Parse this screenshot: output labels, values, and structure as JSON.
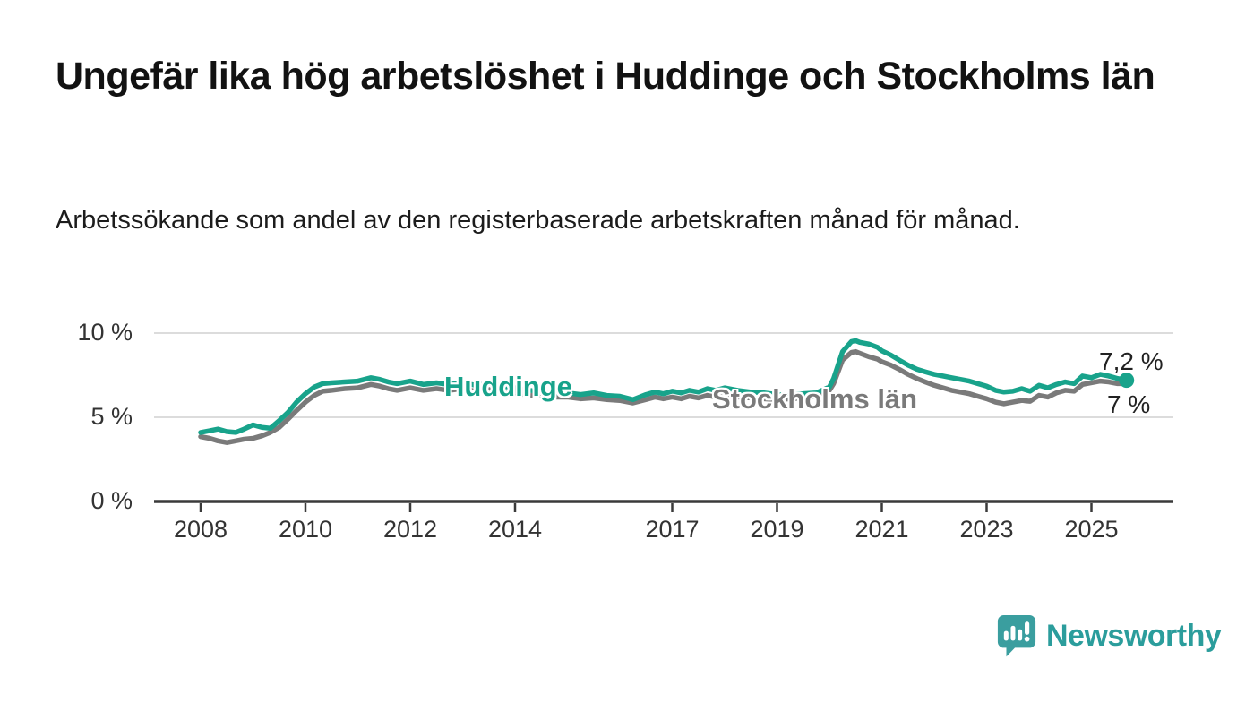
{
  "title": "Ungefär lika hög arbetslöshet i Huddinge och Stockholms län",
  "subtitle": "Arbetssökande som andel av den registerbaserade arbetskraften månad för månad.",
  "branding": {
    "name": "Newsworthy",
    "logo_icon": "bar-chart-speech-bubble-icon",
    "logo_color": "#3a9e9f",
    "text_color": "#2b9d9c"
  },
  "colors": {
    "huddinge_line": "#18a38b",
    "stockholm_line": "#7a7a7a",
    "axis": "#3a3a3a",
    "grid": "#dcdcdc",
    "tick_text": "#333333",
    "title_text": "#121212"
  },
  "chart_data": {
    "type": "line",
    "title": "Ungefär lika hög arbetslöshet i Huddinge och Stockholms län",
    "xlabel": "",
    "ylabel": "",
    "grid": "horizontal",
    "legend_position": "inline-labels",
    "xlim": [
      2007.2,
      2026.5
    ],
    "ylim": [
      0,
      10.5
    ],
    "x_ticks": [
      2008,
      2010,
      2012,
      2014,
      2017,
      2019,
      2021,
      2023,
      2025
    ],
    "y_ticks": [
      {
        "value": 0,
        "label": "0 %"
      },
      {
        "value": 5,
        "label": "5 %"
      },
      {
        "value": 10,
        "label": "10 %"
      }
    ],
    "series": [
      {
        "name": "Huddinge",
        "color": "#18a38b",
        "end_label": "7,2 %",
        "end_value": 7.2,
        "end_dot": true,
        "points": [
          [
            2008.0,
            4.1
          ],
          [
            2008.17,
            4.2
          ],
          [
            2008.33,
            4.3
          ],
          [
            2008.5,
            4.15
          ],
          [
            2008.67,
            4.1
          ],
          [
            2008.83,
            4.3
          ],
          [
            2009.0,
            4.55
          ],
          [
            2009.17,
            4.4
          ],
          [
            2009.33,
            4.35
          ],
          [
            2009.5,
            4.8
          ],
          [
            2009.67,
            5.3
          ],
          [
            2009.83,
            5.9
          ],
          [
            2010.0,
            6.4
          ],
          [
            2010.17,
            6.8
          ],
          [
            2010.33,
            7.0
          ],
          [
            2010.5,
            7.05
          ],
          [
            2010.75,
            7.1
          ],
          [
            2011.0,
            7.15
          ],
          [
            2011.25,
            7.35
          ],
          [
            2011.42,
            7.25
          ],
          [
            2011.58,
            7.1
          ],
          [
            2011.75,
            7.0
          ],
          [
            2012.0,
            7.15
          ],
          [
            2012.25,
            6.95
          ],
          [
            2012.5,
            7.05
          ],
          [
            2012.75,
            6.95
          ],
          [
            2013.0,
            7.05
          ],
          [
            2013.25,
            6.9
          ],
          [
            2013.5,
            7.0
          ],
          [
            2013.75,
            6.85
          ],
          [
            2014.0,
            6.75
          ],
          [
            2014.25,
            6.6
          ],
          [
            2014.5,
            6.55
          ],
          [
            2014.75,
            6.45
          ],
          [
            2015.0,
            6.45
          ],
          [
            2015.25,
            6.35
          ],
          [
            2015.5,
            6.45
          ],
          [
            2015.75,
            6.3
          ],
          [
            2016.0,
            6.25
          ],
          [
            2016.25,
            6.05
          ],
          [
            2016.5,
            6.35
          ],
          [
            2016.67,
            6.5
          ],
          [
            2016.83,
            6.4
          ],
          [
            2017.0,
            6.55
          ],
          [
            2017.17,
            6.45
          ],
          [
            2017.33,
            6.6
          ],
          [
            2017.5,
            6.5
          ],
          [
            2017.67,
            6.7
          ],
          [
            2017.83,
            6.6
          ],
          [
            2018.0,
            6.75
          ],
          [
            2018.25,
            6.6
          ],
          [
            2018.5,
            6.5
          ],
          [
            2018.75,
            6.45
          ],
          [
            2019.0,
            6.35
          ],
          [
            2019.25,
            6.3
          ],
          [
            2019.5,
            6.4
          ],
          [
            2019.75,
            6.45
          ],
          [
            2020.0,
            6.8
          ],
          [
            2020.08,
            7.3
          ],
          [
            2020.25,
            8.9
          ],
          [
            2020.42,
            9.5
          ],
          [
            2020.5,
            9.55
          ],
          [
            2020.58,
            9.45
          ],
          [
            2020.75,
            9.35
          ],
          [
            2020.92,
            9.15
          ],
          [
            2021.0,
            8.95
          ],
          [
            2021.17,
            8.7
          ],
          [
            2021.33,
            8.4
          ],
          [
            2021.5,
            8.1
          ],
          [
            2021.67,
            7.85
          ],
          [
            2021.83,
            7.7
          ],
          [
            2022.0,
            7.55
          ],
          [
            2022.17,
            7.45
          ],
          [
            2022.33,
            7.35
          ],
          [
            2022.5,
            7.25
          ],
          [
            2022.67,
            7.15
          ],
          [
            2022.83,
            7.0
          ],
          [
            2023.0,
            6.85
          ],
          [
            2023.17,
            6.6
          ],
          [
            2023.33,
            6.5
          ],
          [
            2023.5,
            6.55
          ],
          [
            2023.67,
            6.7
          ],
          [
            2023.83,
            6.55
          ],
          [
            2024.0,
            6.9
          ],
          [
            2024.17,
            6.75
          ],
          [
            2024.33,
            6.95
          ],
          [
            2024.5,
            7.1
          ],
          [
            2024.67,
            7.0
          ],
          [
            2024.83,
            7.45
          ],
          [
            2025.0,
            7.35
          ],
          [
            2025.17,
            7.55
          ],
          [
            2025.33,
            7.45
          ],
          [
            2025.5,
            7.3
          ],
          [
            2025.67,
            7.2
          ]
        ]
      },
      {
        "name": "Stockholms län",
        "color": "#7a7a7a",
        "end_label": "7 %",
        "end_value": 7.0,
        "end_dot": false,
        "points": [
          [
            2008.0,
            3.85
          ],
          [
            2008.17,
            3.75
          ],
          [
            2008.33,
            3.6
          ],
          [
            2008.5,
            3.5
          ],
          [
            2008.67,
            3.6
          ],
          [
            2008.83,
            3.7
          ],
          [
            2009.0,
            3.75
          ],
          [
            2009.17,
            3.9
          ],
          [
            2009.33,
            4.1
          ],
          [
            2009.5,
            4.4
          ],
          [
            2009.67,
            4.9
          ],
          [
            2009.83,
            5.4
          ],
          [
            2010.0,
            5.9
          ],
          [
            2010.17,
            6.3
          ],
          [
            2010.33,
            6.55
          ],
          [
            2010.5,
            6.6
          ],
          [
            2010.75,
            6.7
          ],
          [
            2011.0,
            6.75
          ],
          [
            2011.25,
            6.95
          ],
          [
            2011.42,
            6.85
          ],
          [
            2011.58,
            6.7
          ],
          [
            2011.75,
            6.6
          ],
          [
            2012.0,
            6.75
          ],
          [
            2012.25,
            6.6
          ],
          [
            2012.5,
            6.7
          ],
          [
            2012.75,
            6.6
          ],
          [
            2013.0,
            6.7
          ],
          [
            2013.25,
            6.55
          ],
          [
            2013.5,
            6.65
          ],
          [
            2013.75,
            6.5
          ],
          [
            2014.0,
            6.45
          ],
          [
            2014.25,
            6.3
          ],
          [
            2014.5,
            6.3
          ],
          [
            2014.75,
            6.2
          ],
          [
            2015.0,
            6.2
          ],
          [
            2015.25,
            6.1
          ],
          [
            2015.5,
            6.15
          ],
          [
            2015.75,
            6.05
          ],
          [
            2016.0,
            6.0
          ],
          [
            2016.25,
            5.85
          ],
          [
            2016.5,
            6.05
          ],
          [
            2016.67,
            6.2
          ],
          [
            2016.83,
            6.1
          ],
          [
            2017.0,
            6.2
          ],
          [
            2017.17,
            6.1
          ],
          [
            2017.33,
            6.25
          ],
          [
            2017.5,
            6.15
          ],
          [
            2017.67,
            6.3
          ],
          [
            2017.83,
            6.2
          ],
          [
            2018.0,
            6.3
          ],
          [
            2018.25,
            6.2
          ],
          [
            2018.5,
            6.15
          ],
          [
            2018.75,
            6.1
          ],
          [
            2019.0,
            6.05
          ],
          [
            2019.25,
            6.1
          ],
          [
            2019.5,
            6.15
          ],
          [
            2019.75,
            6.25
          ],
          [
            2020.0,
            6.6
          ],
          [
            2020.08,
            7.0
          ],
          [
            2020.25,
            8.4
          ],
          [
            2020.42,
            8.85
          ],
          [
            2020.5,
            8.9
          ],
          [
            2020.58,
            8.8
          ],
          [
            2020.75,
            8.6
          ],
          [
            2020.92,
            8.45
          ],
          [
            2021.0,
            8.3
          ],
          [
            2021.17,
            8.1
          ],
          [
            2021.33,
            7.85
          ],
          [
            2021.5,
            7.55
          ],
          [
            2021.67,
            7.3
          ],
          [
            2021.83,
            7.1
          ],
          [
            2022.0,
            6.9
          ],
          [
            2022.17,
            6.75
          ],
          [
            2022.33,
            6.6
          ],
          [
            2022.5,
            6.5
          ],
          [
            2022.67,
            6.4
          ],
          [
            2022.83,
            6.25
          ],
          [
            2023.0,
            6.1
          ],
          [
            2023.17,
            5.9
          ],
          [
            2023.33,
            5.8
          ],
          [
            2023.5,
            5.9
          ],
          [
            2023.67,
            6.0
          ],
          [
            2023.83,
            5.95
          ],
          [
            2024.0,
            6.3
          ],
          [
            2024.17,
            6.2
          ],
          [
            2024.33,
            6.45
          ],
          [
            2024.5,
            6.6
          ],
          [
            2024.67,
            6.55
          ],
          [
            2024.83,
            6.95
          ],
          [
            2025.0,
            7.05
          ],
          [
            2025.17,
            7.15
          ],
          [
            2025.33,
            7.1
          ],
          [
            2025.5,
            7.0
          ],
          [
            2025.67,
            7.0
          ]
        ]
      }
    ]
  }
}
